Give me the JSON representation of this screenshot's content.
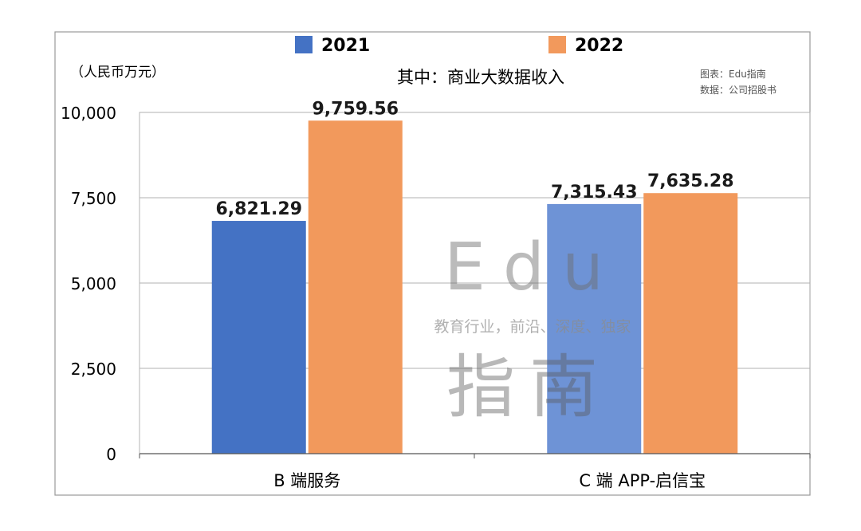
{
  "chart_data": {
    "type": "bar",
    "title": "其中：商业大数据收入",
    "unit_label": "（人民币万元）",
    "source_lines": [
      "图表：Edu指南",
      "数据：公司招股书"
    ],
    "categories": [
      "B 端服务",
      "C 端 APP-启信宝"
    ],
    "series": [
      {
        "name": "2021",
        "values": [
          6821.29,
          7315.43
        ],
        "color": "#4472C4"
      },
      {
        "name": "2022",
        "values": [
          9759.56,
          7635.28
        ],
        "color": "#F2995C"
      }
    ],
    "data_labels": [
      [
        "6,821.29",
        "7,315.43"
      ],
      [
        "9,759.56",
        "7,635.28"
      ]
    ],
    "ylim": [
      0,
      10000
    ],
    "yticks": [
      0,
      2500,
      5000,
      7500,
      10000
    ],
    "ytick_labels": [
      "0",
      "2,500",
      "5,000",
      "7,500",
      "10,000"
    ],
    "grid": true,
    "legend_position": "top-center"
  },
  "watermark": {
    "brand": "Edu",
    "tagline": "教育行业，前沿、深度、独家",
    "name": "指南"
  }
}
